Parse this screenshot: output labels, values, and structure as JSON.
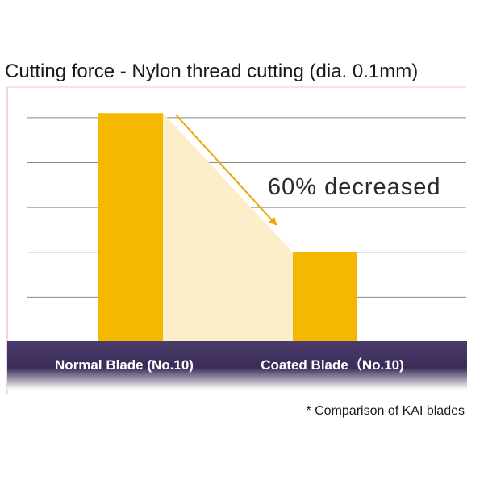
{
  "chart_data": {
    "type": "bar",
    "title": "Cutting force - Nylon thread cutting (dia. 0.1mm)",
    "categories": [
      "Normal Blade (No.10)",
      "Coated Blade（No.10)"
    ],
    "values": [
      5.1,
      2.0
    ],
    "ylim": [
      0,
      5.5
    ],
    "grid": true,
    "annotation": "60% decreased",
    "footnote": "* Comparison of KAI blades",
    "bar_color": "#f5b800",
    "fill_color": "#fbeec9",
    "arrow_color": "#e8a800",
    "band_color": "#3b2e58"
  }
}
